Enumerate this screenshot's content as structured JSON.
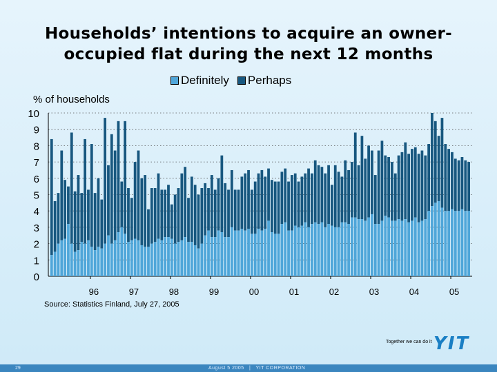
{
  "title": "Households’ intentions to acquire an owner-occupied flat during the next 12 months",
  "title_lines": [
    "Households’ intentions to acquire an owner-",
    "occupied flat during the next 12 months"
  ],
  "source": "Source: Statistics Finland, July 27, 2005",
  "tagline": "Together we can do it",
  "logo_text": "YIT",
  "footer": {
    "page_number": "29",
    "date": "August 5 2005",
    "separator": "|",
    "company": "YIT CORPORATION"
  },
  "colors": {
    "definitely": "#4fa6d9",
    "perhaps": "#17577f",
    "background": "#d9eefa",
    "footer_bar": "#3b86bf"
  },
  "chart_data": {
    "type": "bar",
    "stacked": true,
    "title": "Households’ intentions to acquire an owner-occupied flat during the next 12 months",
    "ylabel": "% of households",
    "xlabel": "",
    "ylim": [
      0,
      10
    ],
    "yticks": [
      0,
      1,
      2,
      3,
      4,
      5,
      6,
      7,
      8,
      9,
      10
    ],
    "xtick_labels": [
      "96",
      "97",
      "98",
      "99",
      "00",
      "01",
      "02",
      "03",
      "04",
      "05"
    ],
    "grid": "dotted horizontal",
    "legend": "top-center",
    "period": "monthly, Jan 1995 – Jun 2005",
    "series": [
      {
        "name": "Definitely",
        "values": [
          1.3,
          1.5,
          2.0,
          2.2,
          2.3,
          3.2,
          2.0,
          1.5,
          1.6,
          2.1,
          2.0,
          2.2,
          1.8,
          1.6,
          1.8,
          1.7,
          2.0,
          2.5,
          2.0,
          2.2,
          2.7,
          3.0,
          2.6,
          2.1,
          2.2,
          2.3,
          2.2,
          1.9,
          1.8,
          1.8,
          2.0,
          2.1,
          2.3,
          2.2,
          2.4,
          2.4,
          2.3,
          2.0,
          2.1,
          2.2,
          2.4,
          2.1,
          2.1,
          1.9,
          1.7,
          2.0,
          2.5,
          2.8,
          2.4,
          2.4,
          2.8,
          2.7,
          2.4,
          2.4,
          3.0,
          2.8,
          2.8,
          2.9,
          2.8,
          2.9,
          2.6,
          2.6,
          2.9,
          2.8,
          2.9,
          3.4,
          2.7,
          2.6,
          2.6,
          3.2,
          3.3,
          2.8,
          2.8,
          3.1,
          3.0,
          3.1,
          3.3,
          3.0,
          3.2,
          3.3,
          3.2,
          3.3,
          3.0,
          3.2,
          3.1,
          3.0,
          3.0,
          3.3,
          3.3,
          3.2,
          3.6,
          3.6,
          3.5,
          3.5,
          3.4,
          3.6,
          3.8,
          3.2,
          3.2,
          3.4,
          3.7,
          3.6,
          3.4,
          3.4,
          3.5,
          3.4,
          3.5,
          3.3,
          3.4,
          3.6,
          3.3,
          3.4,
          3.5,
          4.0,
          4.3,
          4.5,
          4.6,
          4.2,
          4.0,
          4.0,
          4.1,
          4.0,
          4.0,
          4.1,
          4.0,
          4.0
        ]
      },
      {
        "name": "Perhaps",
        "values": [
          7.1,
          3.1,
          3.1,
          5.5,
          3.6,
          2.3,
          6.8,
          3.7,
          4.6,
          3.0,
          6.4,
          3.1,
          6.3,
          3.5,
          4.2,
          3.0,
          7.7,
          4.3,
          6.7,
          5.5,
          6.8,
          2.8,
          6.9,
          3.3,
          2.6,
          4.7,
          5.5,
          4.1,
          4.4,
          2.3,
          3.4,
          3.3,
          4.0,
          3.1,
          2.9,
          3.2,
          2.1,
          3.0,
          3.3,
          4.1,
          4.3,
          2.7,
          4.0,
          3.7,
          3.3,
          3.4,
          3.2,
          2.6,
          3.8,
          2.9,
          3.2,
          4.7,
          3.3,
          2.9,
          3.5,
          2.5,
          2.5,
          3.2,
          3.5,
          3.6,
          2.7,
          3.2,
          3.4,
          3.7,
          3.2,
          3.2,
          3.2,
          3.2,
          3.2,
          3.2,
          3.3,
          3.0,
          3.4,
          3.2,
          2.8,
          3.0,
          3.0,
          3.6,
          3.1,
          3.8,
          3.6,
          3.4,
          3.3,
          3.6,
          2.5,
          3.8,
          3.4,
          2.8,
          3.8,
          3.3,
          3.4,
          5.2,
          3.3,
          5.1,
          3.8,
          4.4,
          3.9,
          3.0,
          4.5,
          4.9,
          3.7,
          3.7,
          3.6,
          2.9,
          3.9,
          4.2,
          4.7,
          4.2,
          4.4,
          4.3,
          4.2,
          4.3,
          3.9,
          4.1,
          5.7,
          5.0,
          4.0,
          5.5,
          4.1,
          3.8,
          3.5,
          3.2,
          3.1,
          3.2,
          3.1,
          3.0
        ]
      }
    ]
  }
}
